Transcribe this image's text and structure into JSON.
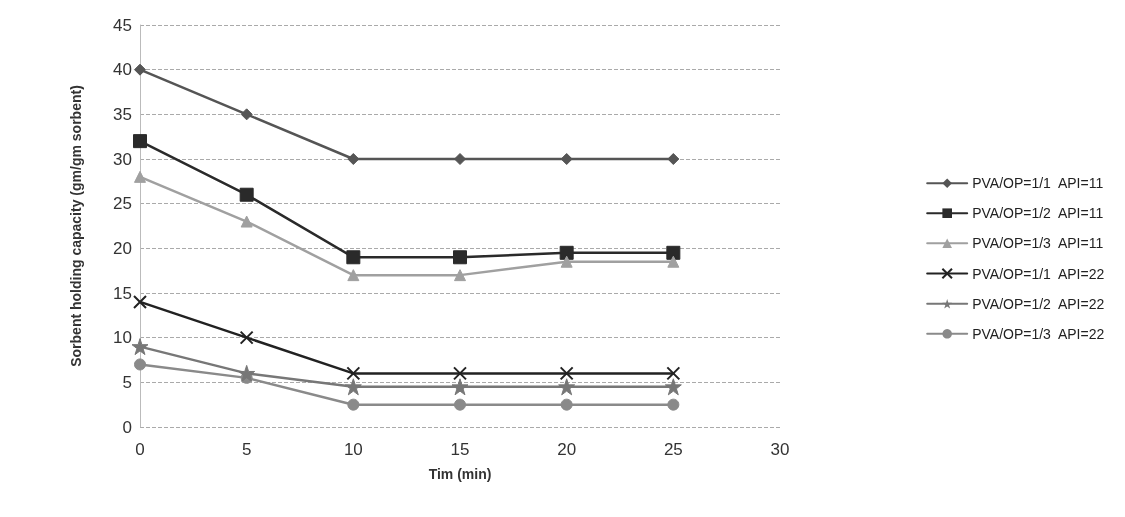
{
  "chart_data": {
    "type": "line",
    "xlabel": "Tim (min)",
    "ylabel": "Sorbent holding capacity (gm/gm sorbent)",
    "x": [
      0,
      5,
      10,
      15,
      20,
      25
    ],
    "series": [
      {
        "name": "PVA/OP=1/1  API=11",
        "color": "#555555",
        "marker": "diamond",
        "values": [
          40,
          35,
          30,
          30,
          30,
          30
        ]
      },
      {
        "name": "PVA/OP=1/2  API=11",
        "color": "#2a2a2a",
        "marker": "square",
        "values": [
          32,
          26,
          19,
          19,
          19.5,
          19.5
        ]
      },
      {
        "name": "PVA/OP=1/3  API=11",
        "color": "#a0a0a0",
        "marker": "triangle",
        "values": [
          28,
          23,
          17,
          17,
          18.5,
          18.5
        ]
      },
      {
        "name": "PVA/OP=1/1  API=22",
        "color": "#222222",
        "marker": "cross",
        "values": [
          14,
          10,
          6,
          6,
          6,
          6
        ]
      },
      {
        "name": "PVA/OP=1/2  API=22",
        "color": "#777777",
        "marker": "star",
        "values": [
          9,
          6,
          4.5,
          4.5,
          4.5,
          4.5
        ]
      },
      {
        "name": "PVA/OP=1/3  API=22",
        "color": "#8a8a8a",
        "marker": "circle",
        "values": [
          7,
          5.5,
          2.5,
          2.5,
          2.5,
          2.5
        ]
      }
    ],
    "xlim": [
      0,
      30
    ],
    "xticks": [
      0,
      5,
      10,
      15,
      20,
      25,
      30
    ],
    "ylim": [
      0,
      45
    ],
    "yticks": [
      0,
      5,
      10,
      15,
      20,
      25,
      30,
      35,
      40,
      45
    ],
    "grid": "y",
    "legend": "right",
    "line_style": "solid"
  }
}
